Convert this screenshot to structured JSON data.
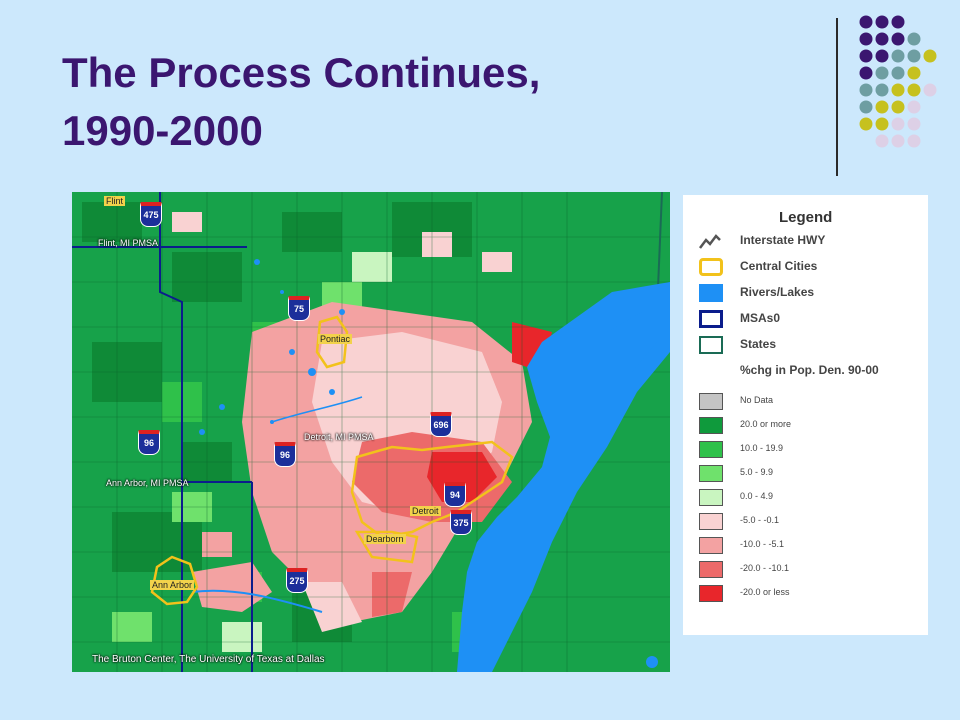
{
  "slide": {
    "title_line1": "The Process Continues,",
    "title_line2": "1990-2000",
    "background": "#cce8fc",
    "title_color": "#3b1670"
  },
  "map": {
    "labels": {
      "flint": "Flint",
      "flint_pmsa": "Flint, MI PMSA",
      "detroit_pmsa": "Detroit, MI PMSA",
      "ann_arbor_pmsa": "Ann Arbor, MI PMSA",
      "pontiac": "Pontiac",
      "detroit": "Detroit",
      "dearborn": "Dearborn",
      "ann_arbor": "Ann Arbor"
    },
    "shields": [
      "475",
      "75",
      "696",
      "96",
      "96",
      "94",
      "375",
      "275"
    ],
    "credit": "The Bruton Center,  The University of Texas at Dallas"
  },
  "legend": {
    "title": "Legend",
    "layers": [
      {
        "label": "Interstate HWY",
        "icon": "highway-line-icon"
      },
      {
        "label": "Central Cities",
        "icon": "central-cities-outline",
        "color": "#f2c21b"
      },
      {
        "label": "Rivers/Lakes",
        "icon": "water-fill",
        "color": "#1e90f5"
      },
      {
        "label": "MSAs0",
        "icon": "msa-outline",
        "color": "#0b1d8c"
      },
      {
        "label": "States",
        "icon": "state-outline",
        "color": "#1a6b55"
      },
      {
        "label": "%chg in Pop. Den. 90-00",
        "icon": ""
      }
    ],
    "classes": [
      {
        "label": "No Data",
        "color": "#c4c4c4"
      },
      {
        "label": "20.0 or more",
        "color": "#0f9a3c"
      },
      {
        "label": "10.0  -  19.9",
        "color": "#2fc14a"
      },
      {
        "label": "5.0  -  9.9",
        "color": "#6fe16c"
      },
      {
        "label": "0.0  -  4.9",
        "color": "#c9f5c0"
      },
      {
        "label": "-5.0  -  -0.1",
        "color": "#f9d2d2"
      },
      {
        "label": "-10.0  -  -5.1",
        "color": "#f3a2a2"
      },
      {
        "label": "-20.0  -  -10.1",
        "color": "#ec6a6a"
      },
      {
        "label": "-20.0 or less",
        "color": "#e8262b"
      }
    ]
  }
}
